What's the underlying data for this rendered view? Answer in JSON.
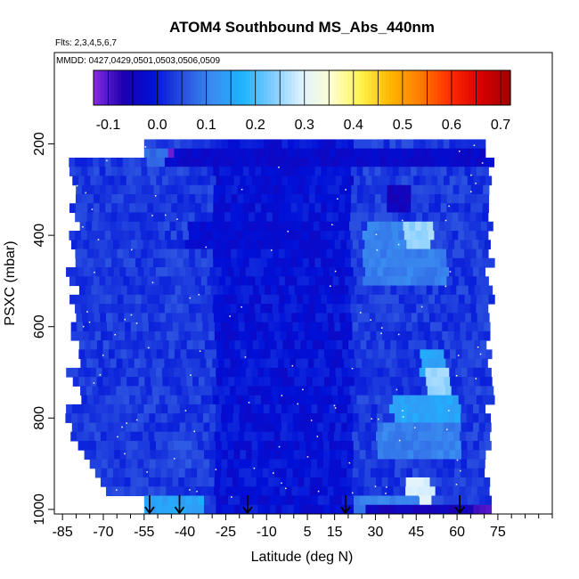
{
  "chart_data": {
    "type": "heatmap",
    "title": "ATOM4 Southbound MS_Abs_440nm",
    "flights_note": "Flts: 2,3,4,5,6,7",
    "dates_note": "MMDD: 0427,0429,0501,0503,0506,0509",
    "xlabel": "Latitude (deg N)",
    "ylabel": "PSXC (mbar)",
    "xlim": [
      -88,
      95
    ],
    "ylim": [
      1010,
      0
    ],
    "x_ticks": [
      -85,
      -70,
      -55,
      -40,
      -25,
      -10,
      5,
      15,
      30,
      45,
      60,
      75
    ],
    "y_ticks": [
      200,
      400,
      600,
      800,
      1000
    ],
    "colorbar": {
      "min": -0.13,
      "max": 0.72,
      "ticks": [
        -0.1,
        0.0,
        0.1,
        0.2,
        0.3,
        0.4,
        0.5,
        0.6,
        0.7
      ],
      "tick_labels": [
        "-0.1",
        "0.0",
        "0.1",
        "0.2",
        "0.3",
        "0.4",
        "0.5",
        "0.6",
        "0.7"
      ],
      "colors": [
        "#8a2be2",
        "#1c00b0",
        "#0010d8",
        "#2a50e0",
        "#3a8cf0",
        "#1eb4ff",
        "#7ecbff",
        "#dff2ff",
        "#ffffd0",
        "#fff24a",
        "#ffb400",
        "#ff7a00",
        "#ff2a00",
        "#d80000",
        "#a00000"
      ]
    },
    "background_value": 0.02,
    "profile_bands": [
      {
        "p_top": 190,
        "p_bot": 1000,
        "lat_min": -80,
        "lat_max": 72
      },
      {
        "p_top": 230,
        "p_bot": 960,
        "lat_min": -84,
        "lat_max": 70
      }
    ],
    "features": [
      {
        "lat": [
          -48,
          72
        ],
        "p": [
          200,
          240
        ],
        "value": -0.03
      },
      {
        "lat": [
          -55,
          -48
        ],
        "p": [
          195,
          240
        ],
        "value": 0.08
      },
      {
        "lat": [
          -47,
          -46
        ],
        "p": [
          195,
          240
        ],
        "value": -0.12
      },
      {
        "lat": [
          -40,
          5
        ],
        "p": [
          365,
          410
        ],
        "value": -0.02
      },
      {
        "lat": [
          25,
          50
        ],
        "p": [
          360,
          410
        ],
        "value": 0.1
      },
      {
        "lat": [
          40,
          50
        ],
        "p": [
          360,
          410
        ],
        "value": 0.25
      },
      {
        "lat": [
          33,
          42
        ],
        "p": [
          280,
          330
        ],
        "value": -0.05
      },
      {
        "lat": [
          25,
          55
        ],
        "p": [
          420,
          500
        ],
        "value": 0.1
      },
      {
        "lat": [
          45,
          55
        ],
        "p": [
          650,
          700
        ],
        "value": 0.15
      },
      {
        "lat": [
          48,
          56
        ],
        "p": [
          690,
          760
        ],
        "value": 0.25
      },
      {
        "lat": [
          35,
          60
        ],
        "p": [
          750,
          800
        ],
        "value": 0.15
      },
      {
        "lat": [
          30,
          60
        ],
        "p": [
          800,
          870
        ],
        "value": 0.1
      },
      {
        "lat": [
          40,
          50
        ],
        "p": [
          920,
          980
        ],
        "value": 0.3
      },
      {
        "lat": [
          20,
          45
        ],
        "p": [
          960,
          1000
        ],
        "value": 0.1
      },
      {
        "lat": [
          -55,
          -35
        ],
        "p": [
          960,
          1000
        ],
        "value": 0.15
      },
      {
        "lat": [
          25,
          65
        ],
        "p": [
          980,
          1000
        ],
        "value": -0.05
      },
      {
        "lat": [
          65,
          71
        ],
        "p": [
          980,
          1000
        ],
        "value": -0.1
      },
      {
        "lat": [
          -48,
          -38
        ],
        "p": [
          850,
          900
        ],
        "value": 0.05
      }
    ],
    "flight_marker_latitudes": [
      -53,
      -42,
      -17,
      19,
      61
    ]
  }
}
